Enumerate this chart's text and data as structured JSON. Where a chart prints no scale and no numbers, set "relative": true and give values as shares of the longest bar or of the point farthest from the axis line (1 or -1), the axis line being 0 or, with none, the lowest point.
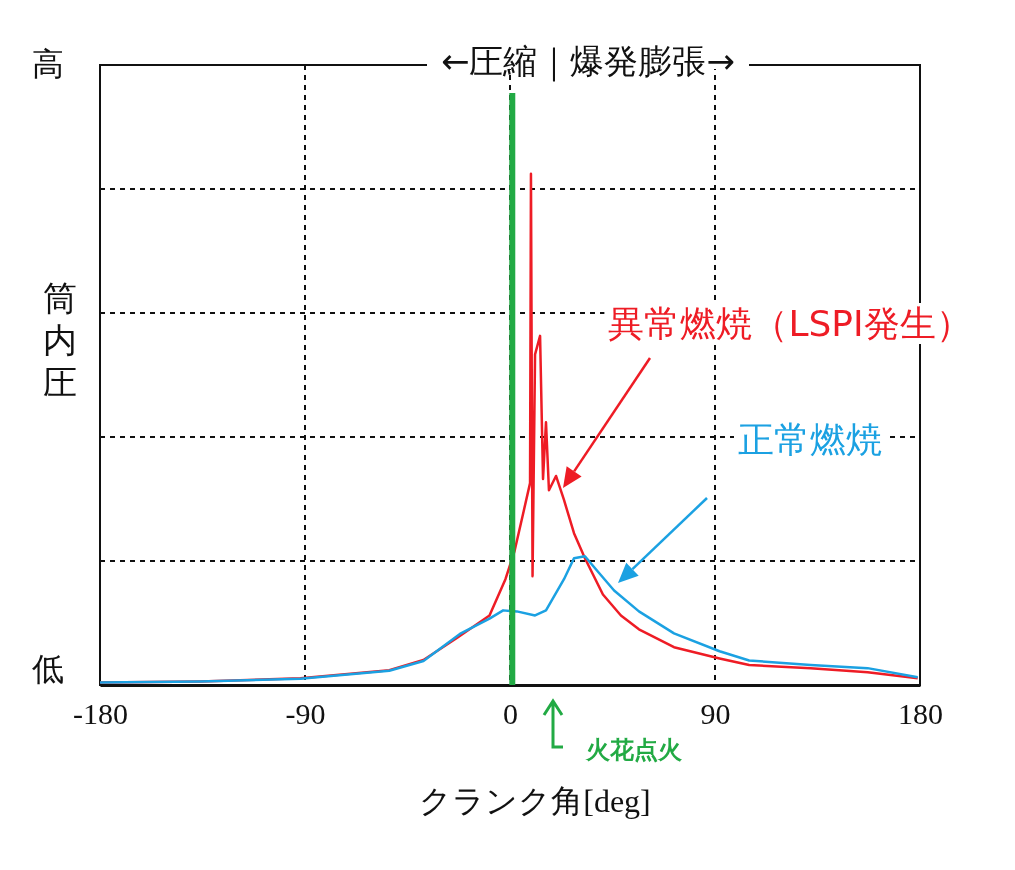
{
  "chart_data": {
    "type": "line",
    "title": "←圧縮｜爆発膨張→",
    "xlabel": "クランク角[deg]",
    "ylabel": "筒内圧",
    "relative": true,
    "grid": true,
    "xlim": [
      -180,
      180
    ],
    "xticks": [
      -180,
      -90,
      0,
      90,
      180
    ],
    "ref_lines": [
      {
        "axis": "x",
        "value": 1,
        "color": "#22aa44"
      }
    ],
    "annotations": [
      "高",
      "低",
      "火花点火"
    ],
    "series": [
      {
        "name": "異常燃焼（LSPI発生）",
        "color": "#ee1c25",
        "x": [
          -180,
          -136,
          -92,
          -53,
          -38,
          -23,
          -9,
          -2,
          2,
          6,
          8.8,
          9.2,
          9.9,
          11,
          13.2,
          14.5,
          15.8,
          17.1,
          20.2,
          23.7,
          28.1,
          32.9,
          40.8,
          48.7,
          56.6,
          72,
          92,
          105,
          132,
          157,
          179
        ],
        "values": [
          0.005,
          0.007,
          0.013,
          0.029,
          0.049,
          0.093,
          0.136,
          0.207,
          0.262,
          0.34,
          0.395,
          1,
          0.213,
          0.647,
          0.683,
          0.403,
          0.514,
          0.381,
          0.409,
          0.362,
          0.297,
          0.248,
          0.177,
          0.136,
          0.109,
          0.074,
          0.052,
          0.039,
          0.033,
          0.025,
          0.013
        ]
      },
      {
        "name": "正常燃焼",
        "color": "#1ba1e2",
        "x": [
          -180,
          -136,
          -92,
          -53,
          -38,
          -22,
          -9,
          -3,
          3,
          11,
          15.8,
          23.7,
          28.1,
          32.9,
          37.8,
          45.7,
          56.6,
          72,
          92,
          105,
          132,
          157,
          179
        ],
        "values": [
          0.005,
          0.007,
          0.012,
          0.028,
          0.047,
          0.1,
          0.13,
          0.146,
          0.144,
          0.136,
          0.146,
          0.207,
          0.248,
          0.252,
          0.226,
          0.185,
          0.144,
          0.101,
          0.066,
          0.048,
          0.039,
          0.033,
          0.015
        ]
      }
    ]
  }
}
